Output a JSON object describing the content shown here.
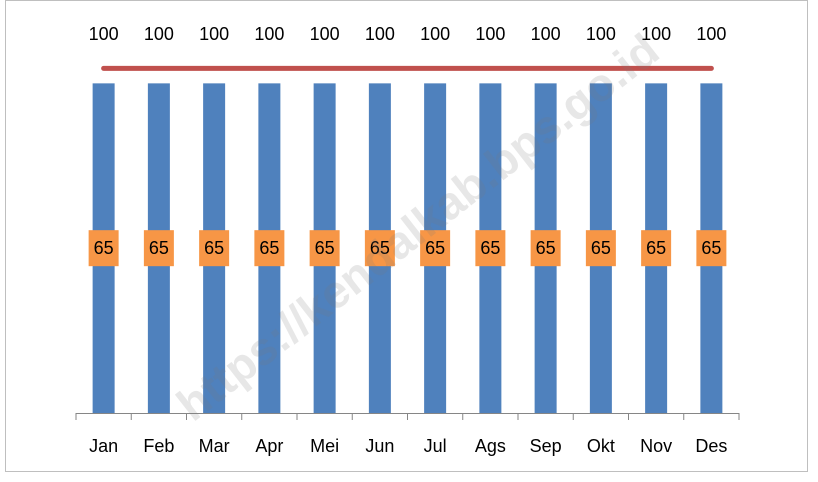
{
  "chart_data": {
    "type": "combo",
    "categories": [
      "Jan",
      "Feb",
      "Mar",
      "Apr",
      "Mei",
      "Jun",
      "Jul",
      "Ags",
      "Sep",
      "Okt",
      "Nov",
      "Des"
    ],
    "series": [
      {
        "type": "bar",
        "color": "#4f81bd",
        "label_color": "#f79646",
        "values": [
          65,
          65,
          65,
          65,
          65,
          65,
          65,
          65,
          65,
          65,
          65,
          65
        ]
      },
      {
        "type": "line",
        "axis": "y2",
        "color": "#c0504d",
        "values": [
          100,
          100,
          100,
          100,
          100,
          100,
          100,
          100,
          100,
          100,
          100,
          100
        ]
      }
    ],
    "ylim": [
      0,
      70
    ],
    "y2lim": [
      0,
      103
    ],
    "watermark": "https://kendalkab.bps.go.id"
  }
}
